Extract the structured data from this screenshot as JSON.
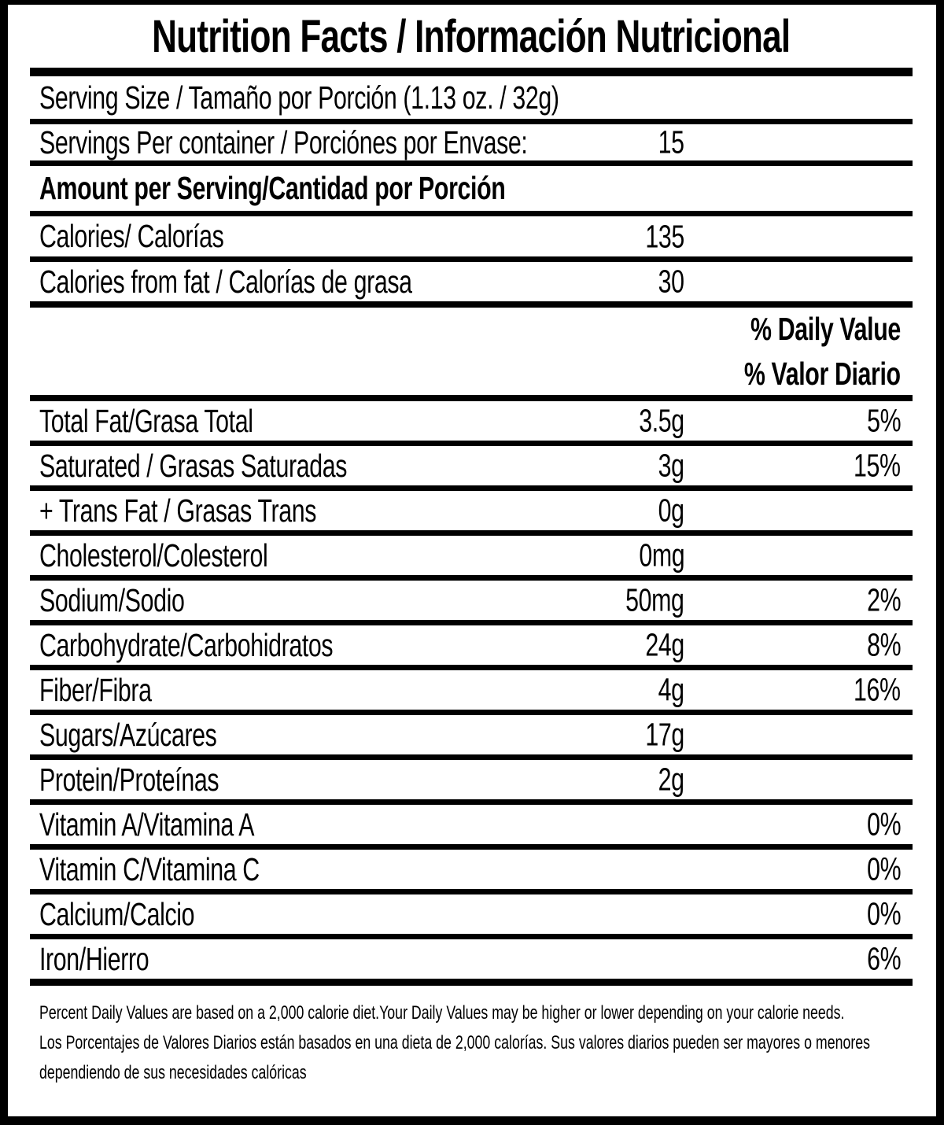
{
  "colors": {
    "ink": "#000000",
    "paper": "#ffffff"
  },
  "label": {
    "title": "Nutrition Facts / Información Nutricional",
    "serving_size": "Serving Size / Tamaño por Porción (1.13 oz. / 32g)",
    "servings_per_container": {
      "label": "Servings Per container / Porciónes por Envase:",
      "value": "15"
    },
    "amount_per_serving_header": "Amount per Serving/Cantidad por Porción",
    "calories": {
      "label": "Calories/ Calorías",
      "value": "135"
    },
    "calories_from_fat": {
      "label": "Calories from fat / Calorías de grasa",
      "value": "30"
    },
    "daily_value_header": {
      "en": "% Daily Value",
      "es": "% Valor Diario"
    },
    "nutrients": [
      {
        "label": "Total Fat/Grasa Total",
        "amount": "3.5g",
        "dv": "5%"
      },
      {
        "label": "Saturated / Grasas Saturadas",
        "amount": "3g",
        "dv": "15%"
      },
      {
        "label": "+ Trans Fat / Grasas Trans",
        "amount": "0g",
        "dv": ""
      },
      {
        "label": "Cholesterol/Colesterol",
        "amount": "0mg",
        "dv": ""
      },
      {
        "label": "Sodium/Sodio",
        "amount": "50mg",
        "dv": "2%"
      },
      {
        "label": "Carbohydrate/Carbohidratos",
        "amount": "24g",
        "dv": "8%"
      },
      {
        "label": "Fiber/Fibra",
        "amount": "4g",
        "dv": "16%"
      },
      {
        "label": "Sugars/Azúcares",
        "amount": "17g",
        "dv": ""
      },
      {
        "label": "Protein/Proteínas",
        "amount": "2g",
        "dv": ""
      },
      {
        "label": "Vitamin A/Vitamina A",
        "amount": "",
        "dv": "0%"
      },
      {
        "label": "Vitamin C/Vitamina C",
        "amount": "",
        "dv": "0%"
      },
      {
        "label": "Calcium/Calcio",
        "amount": "",
        "dv": "0%"
      },
      {
        "label": "Iron/Hierro",
        "amount": "",
        "dv": "6%"
      }
    ],
    "footnotes": {
      "en": "Percent Daily Values are based on a 2,000 calorie diet.Your Daily Values may be higher or lower depending on your calorie needs.",
      "es": "Los Porcentajes de Valores Diarios están basados en una dieta de 2,000 calorías. Sus valores diarios pueden ser mayores o menores dependiendo de sus necesidades calóricas"
    }
  }
}
